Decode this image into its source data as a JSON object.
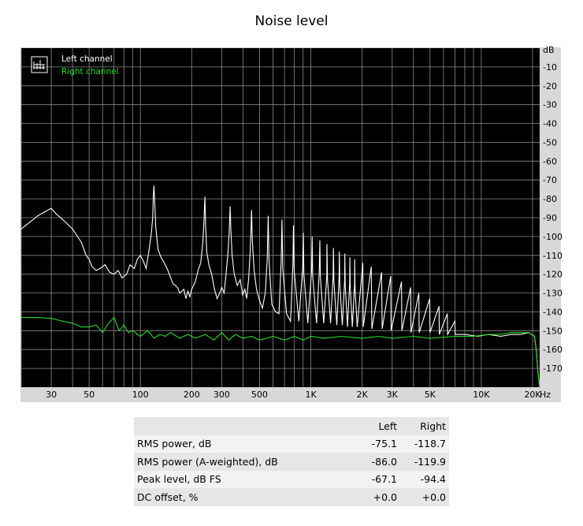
{
  "title": "Noise level",
  "chart_data": {
    "type": "line",
    "xscale": "log",
    "xlim": [
      20,
      22000
    ],
    "ylim": [
      -180,
      0
    ],
    "xunit": "Hz",
    "yunit": "dB",
    "xticks": [
      {
        "v": 30,
        "label": "30"
      },
      {
        "v": 50,
        "label": "50"
      },
      {
        "v": 100,
        "label": "100"
      },
      {
        "v": 200,
        "label": "200"
      },
      {
        "v": 300,
        "label": "300"
      },
      {
        "v": 500,
        "label": "500"
      },
      {
        "v": 1000,
        "label": "1K"
      },
      {
        "v": 2000,
        "label": "2K"
      },
      {
        "v": 3000,
        "label": "3K"
      },
      {
        "v": 5000,
        "label": "5K"
      },
      {
        "v": 10000,
        "label": "10K"
      },
      {
        "v": 20000,
        "label": "20K"
      }
    ],
    "yticks": [
      -10,
      -20,
      -30,
      -40,
      -50,
      -60,
      -70,
      -80,
      -90,
      -100,
      -110,
      -120,
      -130,
      -140,
      -150,
      -160,
      -170
    ],
    "grid": true,
    "legend_position": "top-left",
    "series": [
      {
        "name": "Left channel",
        "color": "#ffffff",
        "points": [
          [
            20,
            -96
          ],
          [
            22,
            -93
          ],
          [
            25,
            -89
          ],
          [
            28,
            -86.5
          ],
          [
            30,
            -85
          ],
          [
            32,
            -88
          ],
          [
            35,
            -91
          ],
          [
            40,
            -96
          ],
          [
            45,
            -103
          ],
          [
            48,
            -110
          ],
          [
            50,
            -112
          ],
          [
            52,
            -116
          ],
          [
            55,
            -118
          ],
          [
            58,
            -117
          ],
          [
            62,
            -115
          ],
          [
            66,
            -119
          ],
          [
            70,
            -120
          ],
          [
            74,
            -118
          ],
          [
            78,
            -122
          ],
          [
            83,
            -120
          ],
          [
            87,
            -115
          ],
          [
            92,
            -117
          ],
          [
            96,
            -112
          ],
          [
            100,
            -110
          ],
          [
            104,
            -113
          ],
          [
            108,
            -117
          ],
          [
            112,
            -108
          ],
          [
            116,
            -98
          ],
          [
            118,
            -90
          ],
          [
            119,
            -79
          ],
          [
            120,
            -73
          ],
          [
            121,
            -79
          ],
          [
            123,
            -95
          ],
          [
            127,
            -107
          ],
          [
            132,
            -111
          ],
          [
            138,
            -114
          ],
          [
            145,
            -118
          ],
          [
            155,
            -125
          ],
          [
            165,
            -127
          ],
          [
            170,
            -130
          ],
          [
            180,
            -128
          ],
          [
            185,
            -133
          ],
          [
            190,
            -129
          ],
          [
            195,
            -132
          ],
          [
            200,
            -128
          ],
          [
            210,
            -124
          ],
          [
            218,
            -118
          ],
          [
            226,
            -114
          ],
          [
            232,
            -104
          ],
          [
            236,
            -92
          ],
          [
            239,
            -79
          ],
          [
            241,
            -93
          ],
          [
            245,
            -108
          ],
          [
            252,
            -115
          ],
          [
            262,
            -120
          ],
          [
            272,
            -128
          ],
          [
            282,
            -133
          ],
          [
            292,
            -130
          ],
          [
            300,
            -127
          ],
          [
            310,
            -130
          ],
          [
            318,
            -120
          ],
          [
            326,
            -109
          ],
          [
            332,
            -97
          ],
          [
            336,
            -84
          ],
          [
            339,
            -95
          ],
          [
            345,
            -110
          ],
          [
            355,
            -120
          ],
          [
            370,
            -126
          ],
          [
            385,
            -123
          ],
          [
            398,
            -131
          ],
          [
            410,
            -128
          ],
          [
            420,
            -133
          ],
          [
            432,
            -122
          ],
          [
            440,
            -109
          ],
          [
            446,
            -95
          ],
          [
            449,
            -86
          ],
          [
            453,
            -102
          ],
          [
            465,
            -118
          ],
          [
            480,
            -128
          ],
          [
            500,
            -134
          ],
          [
            520,
            -138
          ],
          [
            540,
            -130
          ],
          [
            555,
            -112
          ],
          [
            562,
            -89
          ],
          [
            568,
            -112
          ],
          [
            590,
            -136
          ],
          [
            620,
            -140
          ],
          [
            650,
            -141
          ],
          [
            670,
            -113
          ],
          [
            677,
            -91
          ],
          [
            684,
            -117
          ],
          [
            720,
            -141
          ],
          [
            760,
            -145
          ],
          [
            785,
            -115
          ],
          [
            791,
            -94
          ],
          [
            798,
            -118
          ],
          [
            850,
            -145
          ],
          [
            895,
            -117
          ],
          [
            903,
            -98
          ],
          [
            910,
            -120
          ],
          [
            960,
            -146
          ],
          [
            1010,
            -118
          ],
          [
            1017,
            -100
          ],
          [
            1025,
            -121
          ],
          [
            1080,
            -146
          ],
          [
            1120,
            -119
          ],
          [
            1129,
            -102
          ],
          [
            1138,
            -122
          ],
          [
            1190,
            -146
          ],
          [
            1240,
            -121
          ],
          [
            1243,
            -104
          ],
          [
            1252,
            -123
          ],
          [
            1305,
            -146
          ],
          [
            1350,
            -121
          ],
          [
            1356,
            -106
          ],
          [
            1365,
            -124
          ],
          [
            1420,
            -147
          ],
          [
            1465,
            -122
          ],
          [
            1469,
            -108
          ],
          [
            1478,
            -125
          ],
          [
            1530,
            -147
          ],
          [
            1580,
            -123
          ],
          [
            1582,
            -109
          ],
          [
            1591,
            -126
          ],
          [
            1640,
            -148
          ],
          [
            1690,
            -124
          ],
          [
            1695,
            -111
          ],
          [
            1704,
            -127
          ],
          [
            1750,
            -148
          ],
          [
            1805,
            -125
          ],
          [
            1808,
            -112
          ],
          [
            1817,
            -128
          ],
          [
            1870,
            -148
          ],
          [
            2018,
            -114
          ],
          [
            2030,
            -148
          ],
          [
            2260,
            -116
          ],
          [
            2280,
            -149
          ],
          [
            2600,
            -119
          ],
          [
            2620,
            -149
          ],
          [
            2940,
            -121
          ],
          [
            2960,
            -150
          ],
          [
            3400,
            -124
          ],
          [
            3420,
            -150
          ],
          [
            3850,
            -127
          ],
          [
            3870,
            -151
          ],
          [
            4300,
            -130
          ],
          [
            4320,
            -151
          ],
          [
            4980,
            -133
          ],
          [
            5000,
            -151
          ],
          [
            5650,
            -137
          ],
          [
            5670,
            -152
          ],
          [
            6320,
            -141
          ],
          [
            6340,
            -152
          ],
          [
            7000,
            -145
          ],
          [
            7020,
            -152
          ],
          [
            8000,
            -152
          ],
          [
            9500,
            -153
          ],
          [
            11000,
            -152
          ],
          [
            13000,
            -153
          ],
          [
            15000,
            -152
          ],
          [
            17000,
            -152
          ],
          [
            19000,
            -151
          ],
          [
            20500,
            -153
          ],
          [
            21000,
            -160
          ],
          [
            21500,
            -172
          ],
          [
            22000,
            -180
          ]
        ]
      },
      {
        "name": "Right channel",
        "color": "#22dd22",
        "points": [
          [
            20,
            -143
          ],
          [
            25,
            -143
          ],
          [
            30,
            -143.5
          ],
          [
            35,
            -145
          ],
          [
            40,
            -146
          ],
          [
            45,
            -148
          ],
          [
            50,
            -148
          ],
          [
            55,
            -147
          ],
          [
            60,
            -151
          ],
          [
            65,
            -146
          ],
          [
            70,
            -143
          ],
          [
            75,
            -150
          ],
          [
            80,
            -147
          ],
          [
            85,
            -151
          ],
          [
            90,
            -150
          ],
          [
            100,
            -153
          ],
          [
            110,
            -150
          ],
          [
            120,
            -154
          ],
          [
            130,
            -152
          ],
          [
            140,
            -153
          ],
          [
            150,
            -151
          ],
          [
            170,
            -154
          ],
          [
            190,
            -152
          ],
          [
            210,
            -154
          ],
          [
            240,
            -152
          ],
          [
            270,
            -155
          ],
          [
            300,
            -151
          ],
          [
            330,
            -155
          ],
          [
            360,
            -152
          ],
          [
            400,
            -154
          ],
          [
            450,
            -153
          ],
          [
            500,
            -155
          ],
          [
            600,
            -153
          ],
          [
            700,
            -155
          ],
          [
            800,
            -153
          ],
          [
            900,
            -155
          ],
          [
            1000,
            -153
          ],
          [
            1200,
            -154
          ],
          [
            1500,
            -153
          ],
          [
            2000,
            -154
          ],
          [
            2500,
            -153
          ],
          [
            3000,
            -154
          ],
          [
            4000,
            -153
          ],
          [
            5000,
            -154
          ],
          [
            7000,
            -153
          ],
          [
            9000,
            -153
          ],
          [
            11000,
            -152
          ],
          [
            13000,
            -152
          ],
          [
            15000,
            -151
          ],
          [
            17000,
            -151
          ],
          [
            19000,
            -151
          ],
          [
            20500,
            -153
          ],
          [
            21000,
            -160
          ],
          [
            21500,
            -172
          ],
          [
            22000,
            -180
          ]
        ]
      }
    ]
  },
  "stats": {
    "headers": [
      "Left",
      "Right"
    ],
    "rows": [
      {
        "name": "RMS power, dB",
        "left": "-75.1",
        "right": "-118.7"
      },
      {
        "name": "RMS power (A-weighted), dB",
        "left": "-86.0",
        "right": "-119.9"
      },
      {
        "name": "Peak level, dB FS",
        "left": "-67.1",
        "right": "-94.4"
      },
      {
        "name": "DC offset, %",
        "left": "+0.0",
        "right": "+0.0"
      }
    ]
  }
}
